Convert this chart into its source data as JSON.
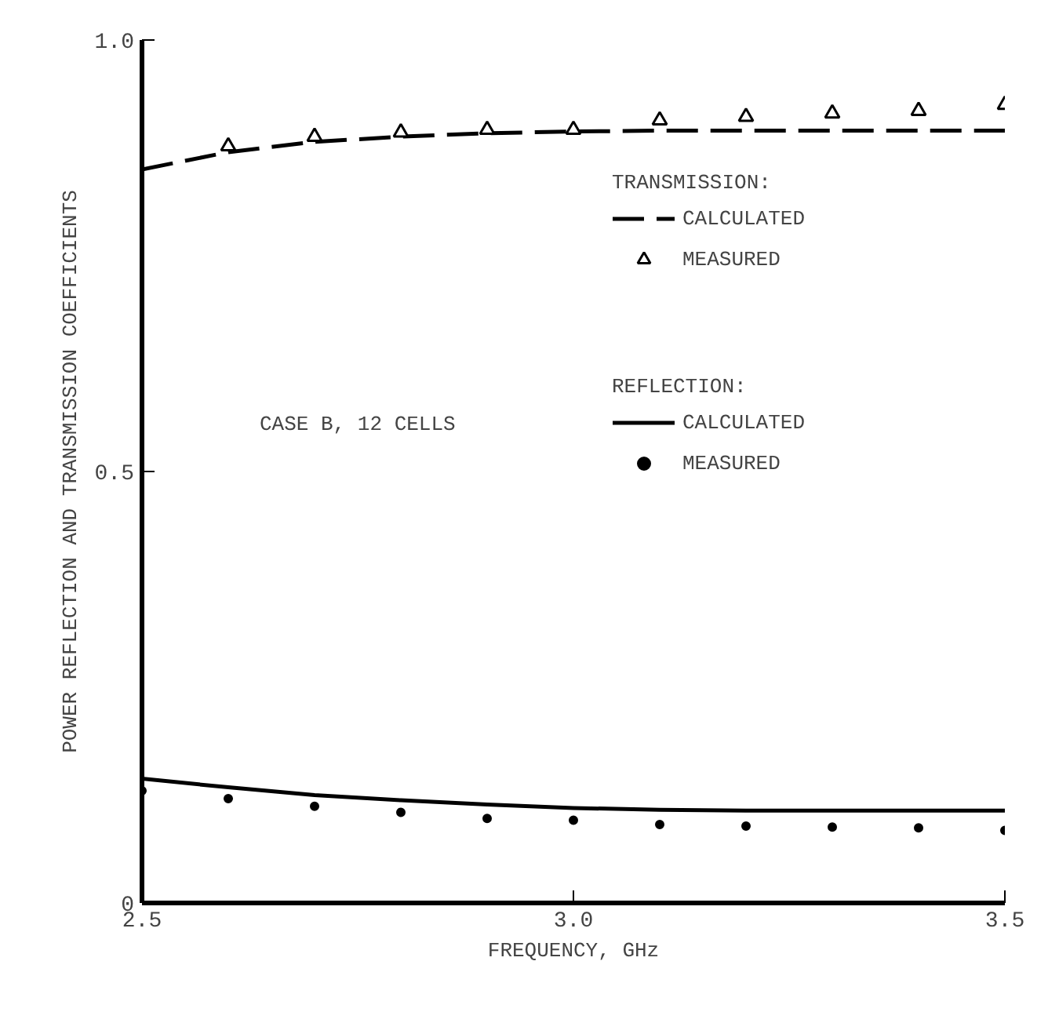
{
  "chart_data": {
    "type": "line",
    "xlabel": "FREQUENCY, GHz",
    "ylabel": "POWER REFLECTION AND TRANSMISSION COEFFICIENTS",
    "x": [
      2.5,
      2.6,
      2.7,
      2.8,
      2.9,
      3.0,
      3.1,
      3.2,
      3.3,
      3.4,
      3.5
    ],
    "series": [
      {
        "name": "CALCULATED",
        "line_style": "dashed",
        "marker": "none",
        "color": "#000000",
        "values": [
          0.85,
          0.87,
          0.882,
          0.888,
          0.892,
          0.894,
          0.895,
          0.895,
          0.895,
          0.895,
          0.895
        ]
      },
      {
        "name": "MEASURED",
        "type": "scatter",
        "marker": "triangle",
        "color": "#000000",
        "values": [
          null,
          0.877,
          0.888,
          0.893,
          0.896,
          0.896,
          0.907,
          0.911,
          0.915,
          0.918,
          0.925
        ]
      },
      {
        "name": "CALCULATED",
        "line_style": "solid",
        "marker": "none",
        "color": "#000000",
        "values": [
          0.144,
          0.134,
          0.125,
          0.119,
          0.114,
          0.11,
          0.108,
          0.107,
          0.107,
          0.107,
          0.107
        ]
      },
      {
        "name": "MEASURED",
        "type": "scatter",
        "marker": "circle",
        "color": "#000000",
        "values": [
          0.13,
          0.121,
          0.112,
          0.105,
          0.098,
          0.096,
          0.091,
          0.089,
          0.088,
          0.087,
          0.084
        ]
      }
    ],
    "annotations": [
      "TRANSMISSION:",
      "REFLECTION:",
      "CASE B, 12 CELLS"
    ],
    "xlim": [
      2.5,
      3.5
    ],
    "ylim": [
      0,
      1.0
    ],
    "xticks": [
      2.5,
      {
        "value": 3.0,
        "label": "3.0"
      },
      3.5
    ],
    "yticks": [
      0,
      0.5,
      {
        "value": 1.0,
        "label": "1.0"
      }
    ],
    "grid": false,
    "legend": "right"
  }
}
